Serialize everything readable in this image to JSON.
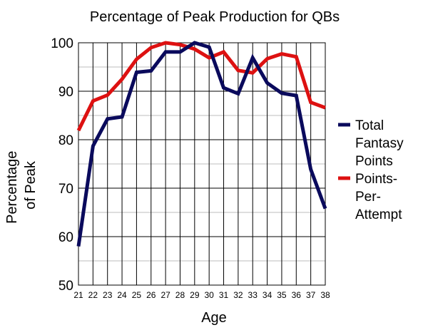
{
  "chart_data": {
    "type": "line",
    "title": "Percentage of Peak Production for QBs",
    "xlabel": "Age",
    "ylabel_lines": [
      "Percentage",
      "of Peak"
    ],
    "x": [
      21,
      22,
      23,
      24,
      25,
      26,
      27,
      28,
      29,
      30,
      31,
      32,
      33,
      34,
      35,
      36,
      37,
      38
    ],
    "ylim": [
      50,
      100
    ],
    "yticks": [
      50,
      60,
      70,
      80,
      90,
      100
    ],
    "grid": true,
    "legend_position": "right",
    "series": [
      {
        "name_lines": [
          "Total",
          "Fantasy",
          "Points"
        ],
        "color": "#0a0a5c",
        "values": [
          58,
          78.7,
          84.3,
          84.7,
          93.9,
          94.2,
          98.1,
          98.1,
          100,
          99.1,
          90.7,
          89.5,
          96.9,
          91.7,
          89.6,
          89.1,
          73.9,
          65.8
        ]
      },
      {
        "name_lines": [
          "Points-",
          "Per-",
          "Attempt"
        ],
        "color": "#dd1111",
        "values": [
          81.9,
          88,
          89.2,
          92.5,
          96.6,
          99,
          100,
          99.6,
          98.7,
          96.9,
          98.1,
          94.3,
          93.8,
          96.7,
          97.7,
          97.1,
          87.7,
          86.6
        ]
      }
    ]
  }
}
